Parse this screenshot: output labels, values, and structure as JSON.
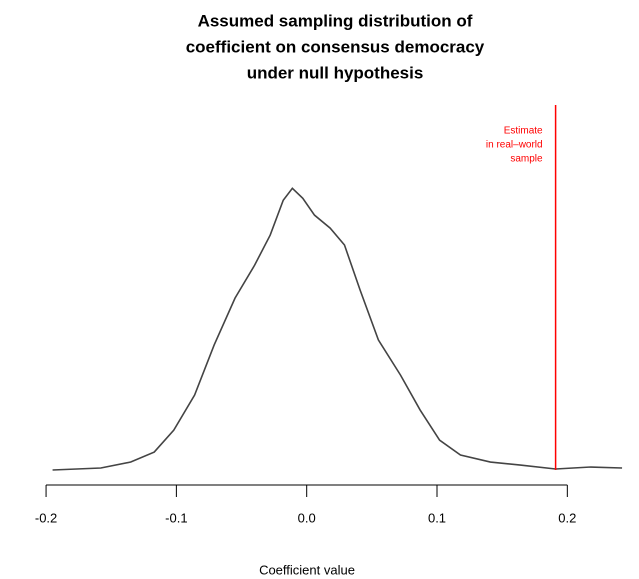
{
  "chart_data": {
    "type": "line",
    "title": [
      "Assumed sampling distribution of",
      "coefficient on consensus democracy",
      "under null hypothesis"
    ],
    "xlabel": "Coefficient value",
    "x": [
      -0.195,
      -0.158,
      -0.135,
      -0.117,
      -0.102,
      -0.086,
      -0.071,
      -0.055,
      -0.04,
      -0.028,
      -0.018,
      -0.011,
      -0.003,
      0.006,
      0.018,
      0.029,
      0.041,
      0.055,
      0.072,
      0.087,
      0.102,
      0.118,
      0.141,
      0.164,
      0.191,
      0.218,
      0.242
    ],
    "values": [
      0.0,
      0.06,
      0.24,
      0.54,
      1.2,
      2.26,
      3.77,
      5.18,
      6.17,
      7.08,
      8.13,
      8.49,
      8.19,
      7.68,
      7.29,
      6.78,
      5.42,
      3.92,
      2.86,
      1.81,
      0.9,
      0.45,
      0.24,
      0.15,
      0.03,
      0.09,
      0.06
    ],
    "color": "#444444",
    "xlim": [
      -0.22,
      0.255
    ],
    "ylim": [
      0,
      11
    ],
    "xticks": [
      -0.2,
      -0.1,
      {
        "value": 0,
        "label": "0.0"
      },
      0.1,
      0.2
    ],
    "reference_line": {
      "x": 0.191,
      "color": "#ff0000",
      "label": [
        "Estimate",
        "in real–world",
        "sample"
      ]
    }
  }
}
